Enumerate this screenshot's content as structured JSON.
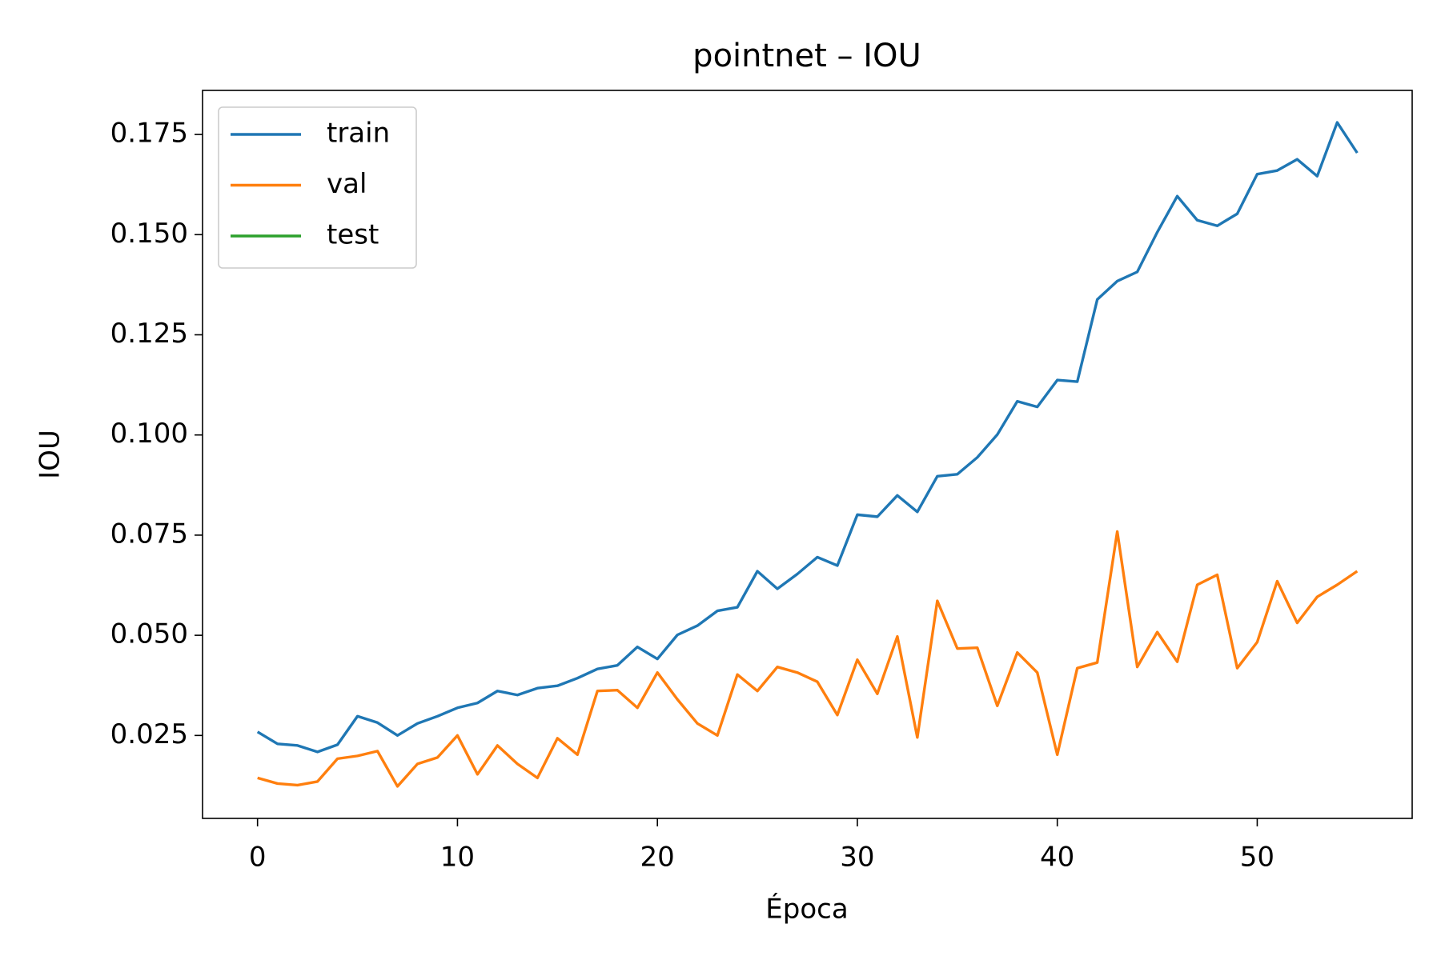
{
  "chart_data": {
    "type": "line",
    "title": "pointnet – IOU",
    "x_label": "Época",
    "y_label": "IOU",
    "x": [
      0,
      1,
      2,
      3,
      4,
      5,
      6,
      7,
      8,
      9,
      10,
      11,
      12,
      13,
      14,
      15,
      16,
      17,
      18,
      19,
      20,
      21,
      22,
      23,
      24,
      25,
      26,
      27,
      28,
      29,
      30,
      31,
      32,
      33,
      34,
      35,
      36,
      37,
      38,
      39,
      40,
      41,
      42,
      43,
      44,
      45,
      46,
      47,
      48,
      49,
      50,
      51,
      52,
      53,
      54,
      55
    ],
    "series": [
      {
        "name": "train",
        "color": "#1f77b4",
        "values": [
          0.0259,
          0.0229,
          0.0225,
          0.0209,
          0.0227,
          0.0298,
          0.0282,
          0.025,
          0.028,
          0.0298,
          0.0319,
          0.0331,
          0.0361,
          0.0351,
          0.0368,
          0.0374,
          0.0393,
          0.0416,
          0.0425,
          0.0471,
          0.0441,
          0.0501,
          0.0524,
          0.0561,
          0.057,
          0.066,
          0.0616,
          0.0653,
          0.0695,
          0.0674,
          0.0801,
          0.0796,
          0.0849,
          0.0808,
          0.0897,
          0.0902,
          0.0944,
          0.1001,
          0.1084,
          0.107,
          0.1137,
          0.1133,
          0.1338,
          0.1384,
          0.1407,
          0.1506,
          0.1596,
          0.1536,
          0.1522,
          0.1552,
          0.1651,
          0.166,
          0.1688,
          0.1646,
          0.178,
          0.1704
        ]
      },
      {
        "name": "val",
        "color": "#ff7f0e",
        "values": [
          0.0144,
          0.013,
          0.0126,
          0.0135,
          0.0192,
          0.0199,
          0.0211,
          0.0123,
          0.0179,
          0.0195,
          0.025,
          0.0153,
          0.0225,
          0.0179,
          0.0144,
          0.0243,
          0.0202,
          0.0361,
          0.0363,
          0.0319,
          0.0407,
          0.034,
          0.028,
          0.025,
          0.0402,
          0.0361,
          0.0421,
          0.0407,
          0.0384,
          0.0301,
          0.0439,
          0.0354,
          0.0497,
          0.0245,
          0.0586,
          0.0467,
          0.0469,
          0.0324,
          0.0457,
          0.0407,
          0.0202,
          0.0418,
          0.0432,
          0.0759,
          0.0421,
          0.0508,
          0.0434,
          0.0626,
          0.0651,
          0.0418,
          0.0483,
          0.0635,
          0.0531,
          0.0596,
          0.0626,
          0.066
        ]
      },
      {
        "name": "test",
        "color": "#2ca02c",
        "values": [
          null,
          null,
          null,
          null,
          null,
          null,
          null,
          null,
          null,
          null,
          null,
          null,
          null,
          null,
          null,
          null,
          null,
          null,
          null,
          null,
          null,
          null,
          null,
          null,
          null,
          null,
          null,
          null,
          null,
          null,
          null,
          null,
          null,
          null,
          null,
          null,
          null,
          null,
          null,
          null,
          null,
          null,
          null,
          null,
          null,
          null,
          null,
          null,
          null,
          null,
          null,
          null,
          null,
          null,
          null,
          null
        ]
      }
    ],
    "xlim": [
      -2.75,
      57.75
    ],
    "xticks": [
      0,
      10,
      20,
      30,
      40,
      50
    ],
    "ylim": [
      0.0043,
      0.186
    ],
    "yticks": [
      0.025,
      {
        "value": 0.05,
        "label": "0.050"
      },
      0.075,
      {
        "value": 0.1,
        "label": "0.100"
      },
      0.125,
      {
        "value": 0.15,
        "label": "0.150"
      },
      0.175
    ],
    "grid": false,
    "legend": "upper left"
  }
}
